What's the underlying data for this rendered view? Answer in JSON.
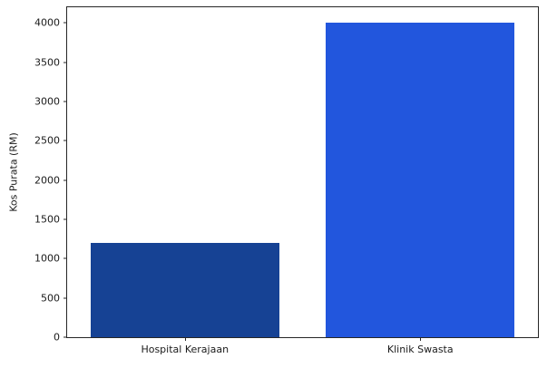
{
  "chart_data": {
    "type": "bar",
    "title": "",
    "xlabel": "",
    "ylabel": "Kos Purata (RM)",
    "categories": [
      "Hospital Kerajaan",
      "Klinik Swasta"
    ],
    "values": [
      1200,
      4000
    ],
    "bar_colors": [
      "#164294",
      "#2256dd"
    ],
    "ylim": [
      0,
      4200
    ],
    "yticks": [
      0,
      500,
      1000,
      1500,
      2000,
      2500,
      3000,
      3500,
      4000
    ],
    "bar_width_fraction": 0.8,
    "grid": false,
    "legend": "none",
    "frame": true,
    "spine_color": "#262626",
    "background_color": "#ffffff",
    "text_color": "#1a1a1a"
  }
}
